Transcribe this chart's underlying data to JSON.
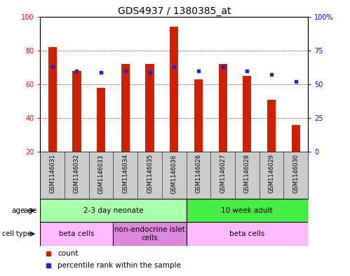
{
  "title": "GDS4937 / 1380385_at",
  "samples": [
    "GSM1146031",
    "GSM1146032",
    "GSM1146033",
    "GSM1146034",
    "GSM1146035",
    "GSM1146036",
    "GSM1146026",
    "GSM1146027",
    "GSM1146028",
    "GSM1146029",
    "GSM1146030"
  ],
  "counts": [
    82,
    68,
    58,
    72,
    72,
    94,
    63,
    72,
    65,
    51,
    36
  ],
  "percentiles": [
    63,
    60,
    59,
    60,
    59,
    63,
    60,
    63,
    60,
    57,
    52
  ],
  "ymin": 20,
  "ymax": 100,
  "yticks_left": [
    20,
    40,
    60,
    80,
    100
  ],
  "yticks_right": [
    0,
    25,
    50,
    75,
    100
  ],
  "bar_color": "#cc2200",
  "dot_color": "#2222cc",
  "bar_width": 0.35,
  "age_groups": [
    {
      "label": "2-3 day neonate",
      "start": 0,
      "end": 6,
      "color": "#aaffaa"
    },
    {
      "label": "10 week adult",
      "start": 6,
      "end": 11,
      "color": "#44ee44"
    }
  ],
  "cell_groups": [
    {
      "label": "beta cells",
      "start": 0,
      "end": 3,
      "color": "#ffbbff"
    },
    {
      "label": "non-endocrine islet\ncells",
      "start": 3,
      "end": 6,
      "color": "#dd88dd"
    },
    {
      "label": "beta cells",
      "start": 6,
      "end": 11,
      "color": "#ffbbff"
    }
  ],
  "bg_color": "#ffffff",
  "title_fontsize": 10,
  "tick_fontsize": 7,
  "annot_fontsize": 7.5
}
